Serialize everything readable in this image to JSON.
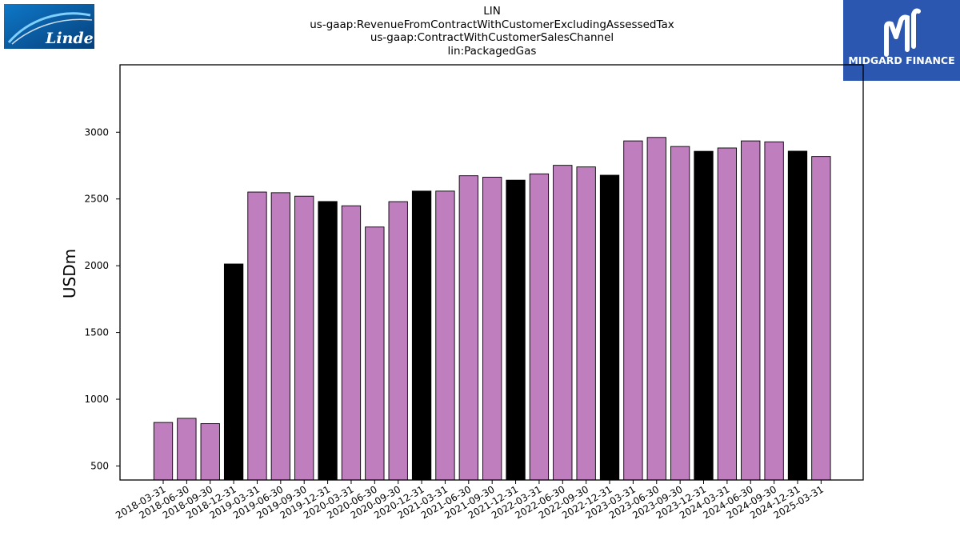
{
  "header": {
    "title_lines": [
      "LIN",
      "us-gaap:RevenueFromContractWithCustomerExcludingAssessedTax",
      "us-gaap:ContractWithCustomerSalesChannel",
      "lin:PackagedGas"
    ],
    "left_logo_text": "Linde",
    "right_logo_text": "MIDGARD FINANCE"
  },
  "colors": {
    "annual_bar": "#000000",
    "quarter_bar": "#bf7fbf",
    "linde_blue": "#0a5ea8",
    "midgard_blue": "#2b57b0"
  },
  "chart_data": {
    "type": "bar",
    "title": "LIN us-gaap:RevenueFromContractWithCustomerExcludingAssessedTax us-gaap:ContractWithCustomerSalesChannel lin:PackagedGas",
    "xlabel": "",
    "ylabel": "USDm",
    "ylim": [
      395,
      3505
    ],
    "yticks": [
      500,
      1000,
      1500,
      2000,
      2500,
      3000
    ],
    "grid": false,
    "categories": [
      "2018-03-31",
      "2018-06-30",
      "2018-09-30",
      "2018-12-31",
      "2019-03-31",
      "2019-06-30",
      "2019-09-30",
      "2019-12-31",
      "2020-03-31",
      "2020-06-30",
      "2020-09-30",
      "2020-12-31",
      "2021-03-31",
      "2021-06-30",
      "2021-09-30",
      "2021-12-31",
      "2022-03-31",
      "2022-06-30",
      "2022-09-30",
      "2022-12-31",
      "2023-03-31",
      "2023-06-30",
      "2023-09-30",
      "2023-12-31",
      "2024-03-31",
      "2024-06-30",
      "2024-09-30",
      "2024-12-31",
      "2025-03-31"
    ],
    "values": [
      826,
      857,
      817,
      2013,
      2552,
      2547,
      2521,
      2481,
      2449,
      2290,
      2480,
      2559,
      2559,
      2674,
      2663,
      2641,
      2688,
      2752,
      2740,
      2678,
      2935,
      2961,
      2893,
      2857,
      2882,
      2935,
      2928,
      2858,
      2818
    ],
    "annual": [
      false,
      false,
      false,
      true,
      false,
      false,
      false,
      true,
      false,
      false,
      false,
      true,
      false,
      false,
      false,
      true,
      false,
      false,
      false,
      true,
      false,
      false,
      false,
      true,
      false,
      false,
      false,
      true,
      false
    ]
  }
}
